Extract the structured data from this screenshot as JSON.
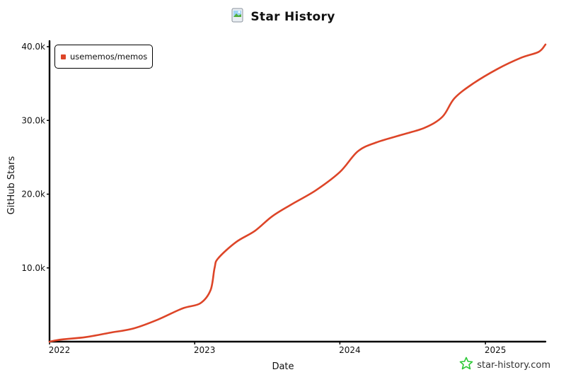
{
  "title": "Star History",
  "watermark": "star-history.com",
  "colors": {
    "series": "#dd4528",
    "axis": "#000000",
    "star_icon": "#2dc937"
  },
  "icons": {
    "title": "github-repo-icon",
    "watermark": "star-outline-icon"
  },
  "chart_data": {
    "type": "line",
    "title": "Star History",
    "xlabel": "Date",
    "ylabel": "GitHub Stars",
    "x_ticks": [
      "2022",
      "2023",
      "2024",
      "2025"
    ],
    "y_ticks": [
      "10.0k",
      "20.0k",
      "30.0k",
      "40.0k"
    ],
    "ylim": [
      0,
      40000
    ],
    "xlim": [
      "2022-01-01",
      "2025-06-01"
    ],
    "grid": false,
    "legend_position": "top-left",
    "series": [
      {
        "name": "usememos/memos",
        "points": [
          [
            "2022-01-01",
            0
          ],
          [
            "2022-02-01",
            300
          ],
          [
            "2022-04-01",
            600
          ],
          [
            "2022-06-01",
            1200
          ],
          [
            "2022-08-01",
            1800
          ],
          [
            "2022-10-01",
            3000
          ],
          [
            "2022-12-01",
            4500
          ],
          [
            "2023-01-15",
            5200
          ],
          [
            "2023-02-10",
            7000
          ],
          [
            "2023-02-20",
            10000
          ],
          [
            "2023-03-01",
            11300
          ],
          [
            "2023-04-15",
            13500
          ],
          [
            "2023-06-01",
            15000
          ],
          [
            "2023-07-15",
            17000
          ],
          [
            "2023-09-01",
            18600
          ],
          [
            "2023-11-01",
            20500
          ],
          [
            "2024-01-01",
            23000
          ],
          [
            "2024-02-15",
            25800
          ],
          [
            "2024-04-01",
            27000
          ],
          [
            "2024-06-01",
            28000
          ],
          [
            "2024-08-01",
            29000
          ],
          [
            "2024-09-15",
            30500
          ],
          [
            "2024-10-15",
            33000
          ],
          [
            "2024-12-01",
            35000
          ],
          [
            "2025-02-01",
            37000
          ],
          [
            "2025-04-01",
            38500
          ],
          [
            "2025-05-15",
            39300
          ],
          [
            "2025-06-01",
            40300
          ]
        ]
      }
    ]
  }
}
